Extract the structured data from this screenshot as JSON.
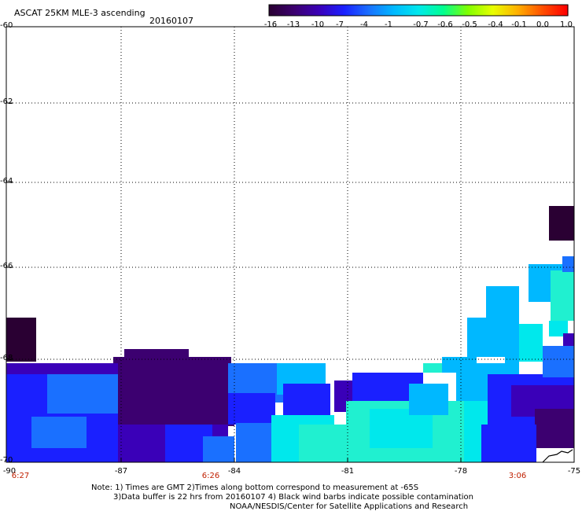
{
  "header": {
    "title": "ASCAT 25KM MLE-3 ascending",
    "date": "20160107"
  },
  "colorbar": {
    "labels": [
      "-16",
      "-13",
      "-10",
      "-7",
      "-4",
      "-1",
      "-0.7",
      "-0.6",
      "-0.5",
      "-0.4",
      "-0.1",
      "0.0",
      "1.0"
    ],
    "colors": [
      "#2a0033",
      "#3c0070",
      "#3a00b8",
      "#1a20ff",
      "#1a70ff",
      "#00b8ff",
      "#00e8ec",
      "#00ff90",
      "#80ff00",
      "#e8ff00",
      "#ffb000",
      "#ff5000",
      "#ff0000"
    ]
  },
  "axes": {
    "y_ticks": [
      "-60",
      "-62",
      "-64",
      "-66",
      "-68",
      "-70"
    ],
    "x_ticks": [
      "-90",
      "-87",
      "-84",
      "-81",
      "-78",
      "-75"
    ],
    "times": [
      "6:27",
      "6:26",
      "3:06"
    ]
  },
  "notes": {
    "line1": "Note: 1) Times are GMT 2)Times along bottom correspond to measurement at -65S",
    "line2": "3)Data buffer is 22 hrs from 20160107 4) Black wind barbs indicate possible contamination",
    "line3": "NOAA/NESDIS/Center for Satellite Applications and Research"
  },
  "map_colors": {
    "dark_purple": "#2a0033",
    "purple": "#3c0070",
    "indigo": "#3a00b8",
    "blue": "#1a20ff",
    "mid_blue": "#1a70ff",
    "light_blue": "#00b8ff",
    "cyan": "#00e8ec",
    "aqua": "#20f0d0"
  }
}
